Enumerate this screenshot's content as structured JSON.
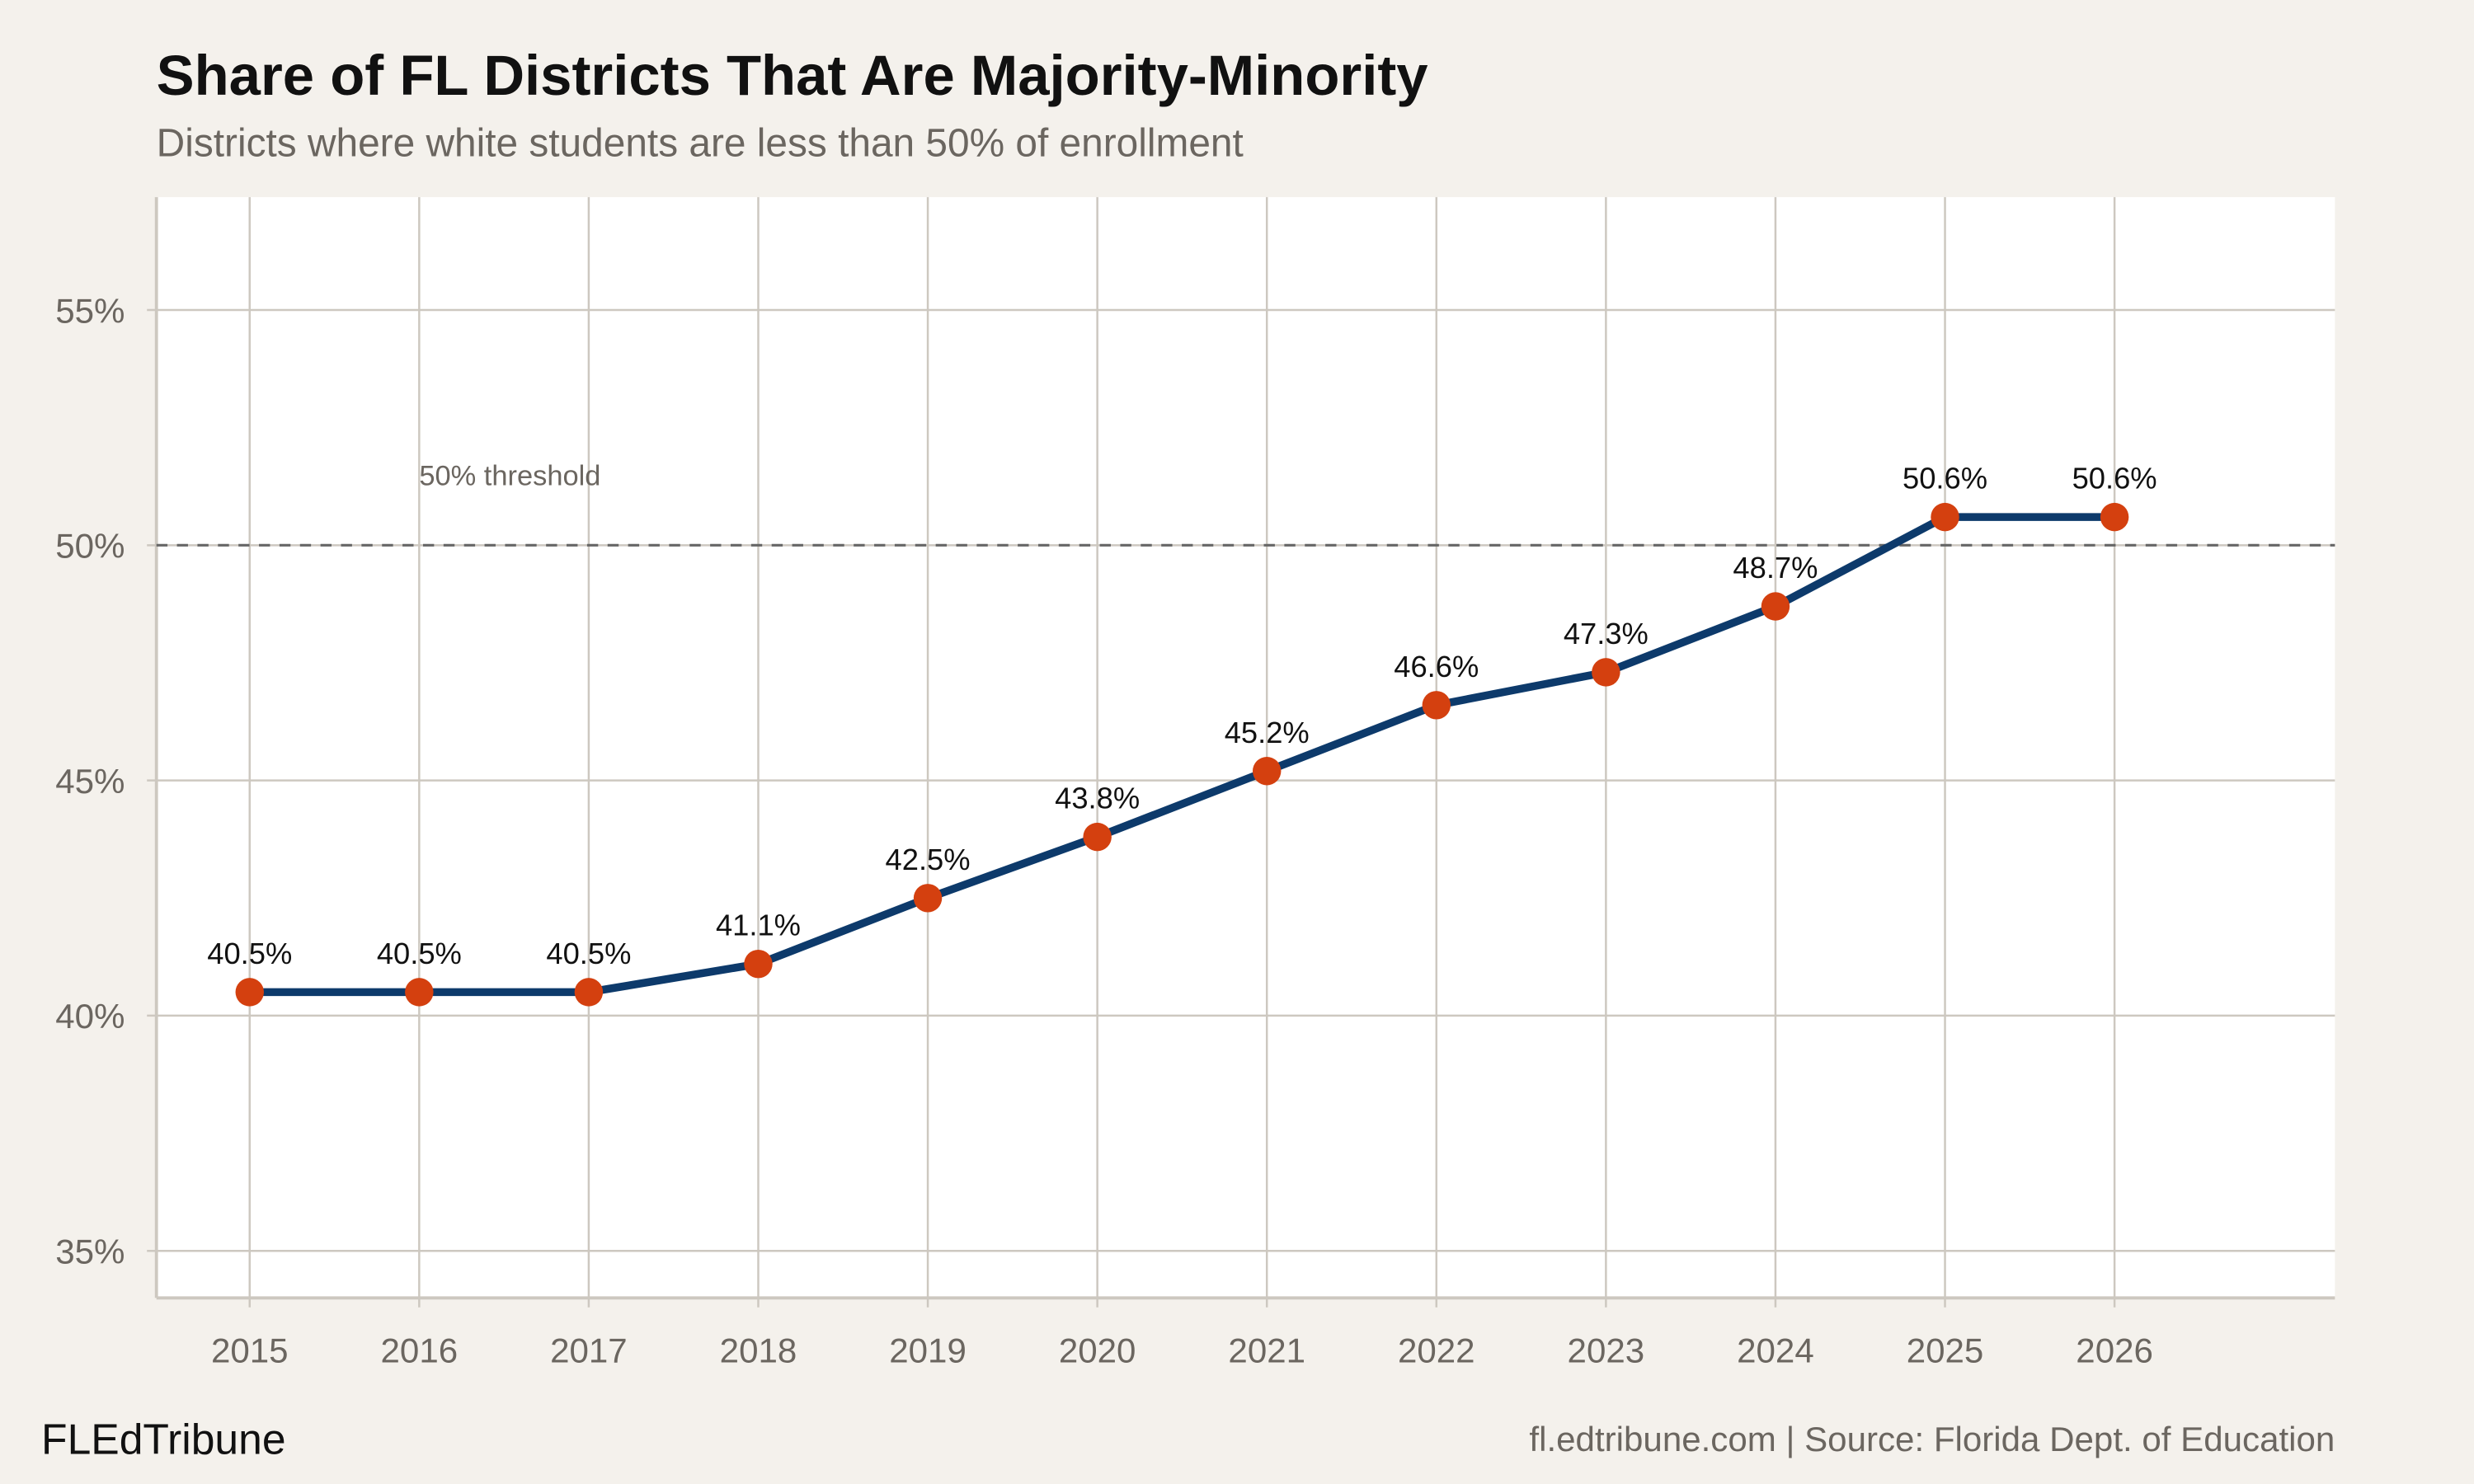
{
  "chart_data": {
    "type": "line",
    "title": "Share of FL Districts That Are Majority-Minority",
    "subtitle": "Districts where white students are less than 50% of enrollment",
    "x": [
      2015,
      2016,
      2017,
      2018,
      2019,
      2020,
      2021,
      2022,
      2023,
      2024,
      2025,
      2026
    ],
    "values": [
      40.5,
      40.5,
      40.5,
      41.1,
      42.5,
      43.8,
      45.2,
      46.6,
      47.3,
      48.7,
      50.6,
      50.6
    ],
    "data_labels": [
      "40.5%",
      "40.5%",
      "40.5%",
      "41.1%",
      "42.5%",
      "43.8%",
      "45.2%",
      "46.6%",
      "47.3%",
      "48.7%",
      "50.6%",
      "50.6%"
    ],
    "x_ticks": [
      "2015",
      "2016",
      "2017",
      "2018",
      "2019",
      "2020",
      "2021",
      "2022",
      "2023",
      "2024",
      "2025",
      "2026"
    ],
    "y_ticks": [
      35,
      40,
      45,
      50,
      55
    ],
    "y_tick_labels": [
      "35%",
      "40%",
      "45%",
      "50%",
      "55%"
    ],
    "xlim": [
      2014.45,
      2027.3
    ],
    "ylim": [
      34.0,
      57.4
    ],
    "grid": true,
    "reference_line": {
      "value": 50,
      "label": "50% threshold",
      "style": "dashed"
    },
    "colors": {
      "line": "#0d3a6b",
      "points": "#d4400f",
      "background": "#f4f1ec",
      "plot_background": "#ffffff",
      "grid": "#cdc8c0",
      "reference": "#666666"
    }
  },
  "footer": {
    "brand": "FLEdTribune",
    "source": "fl.edtribune.com | Source: Florida Dept. of Education"
  }
}
